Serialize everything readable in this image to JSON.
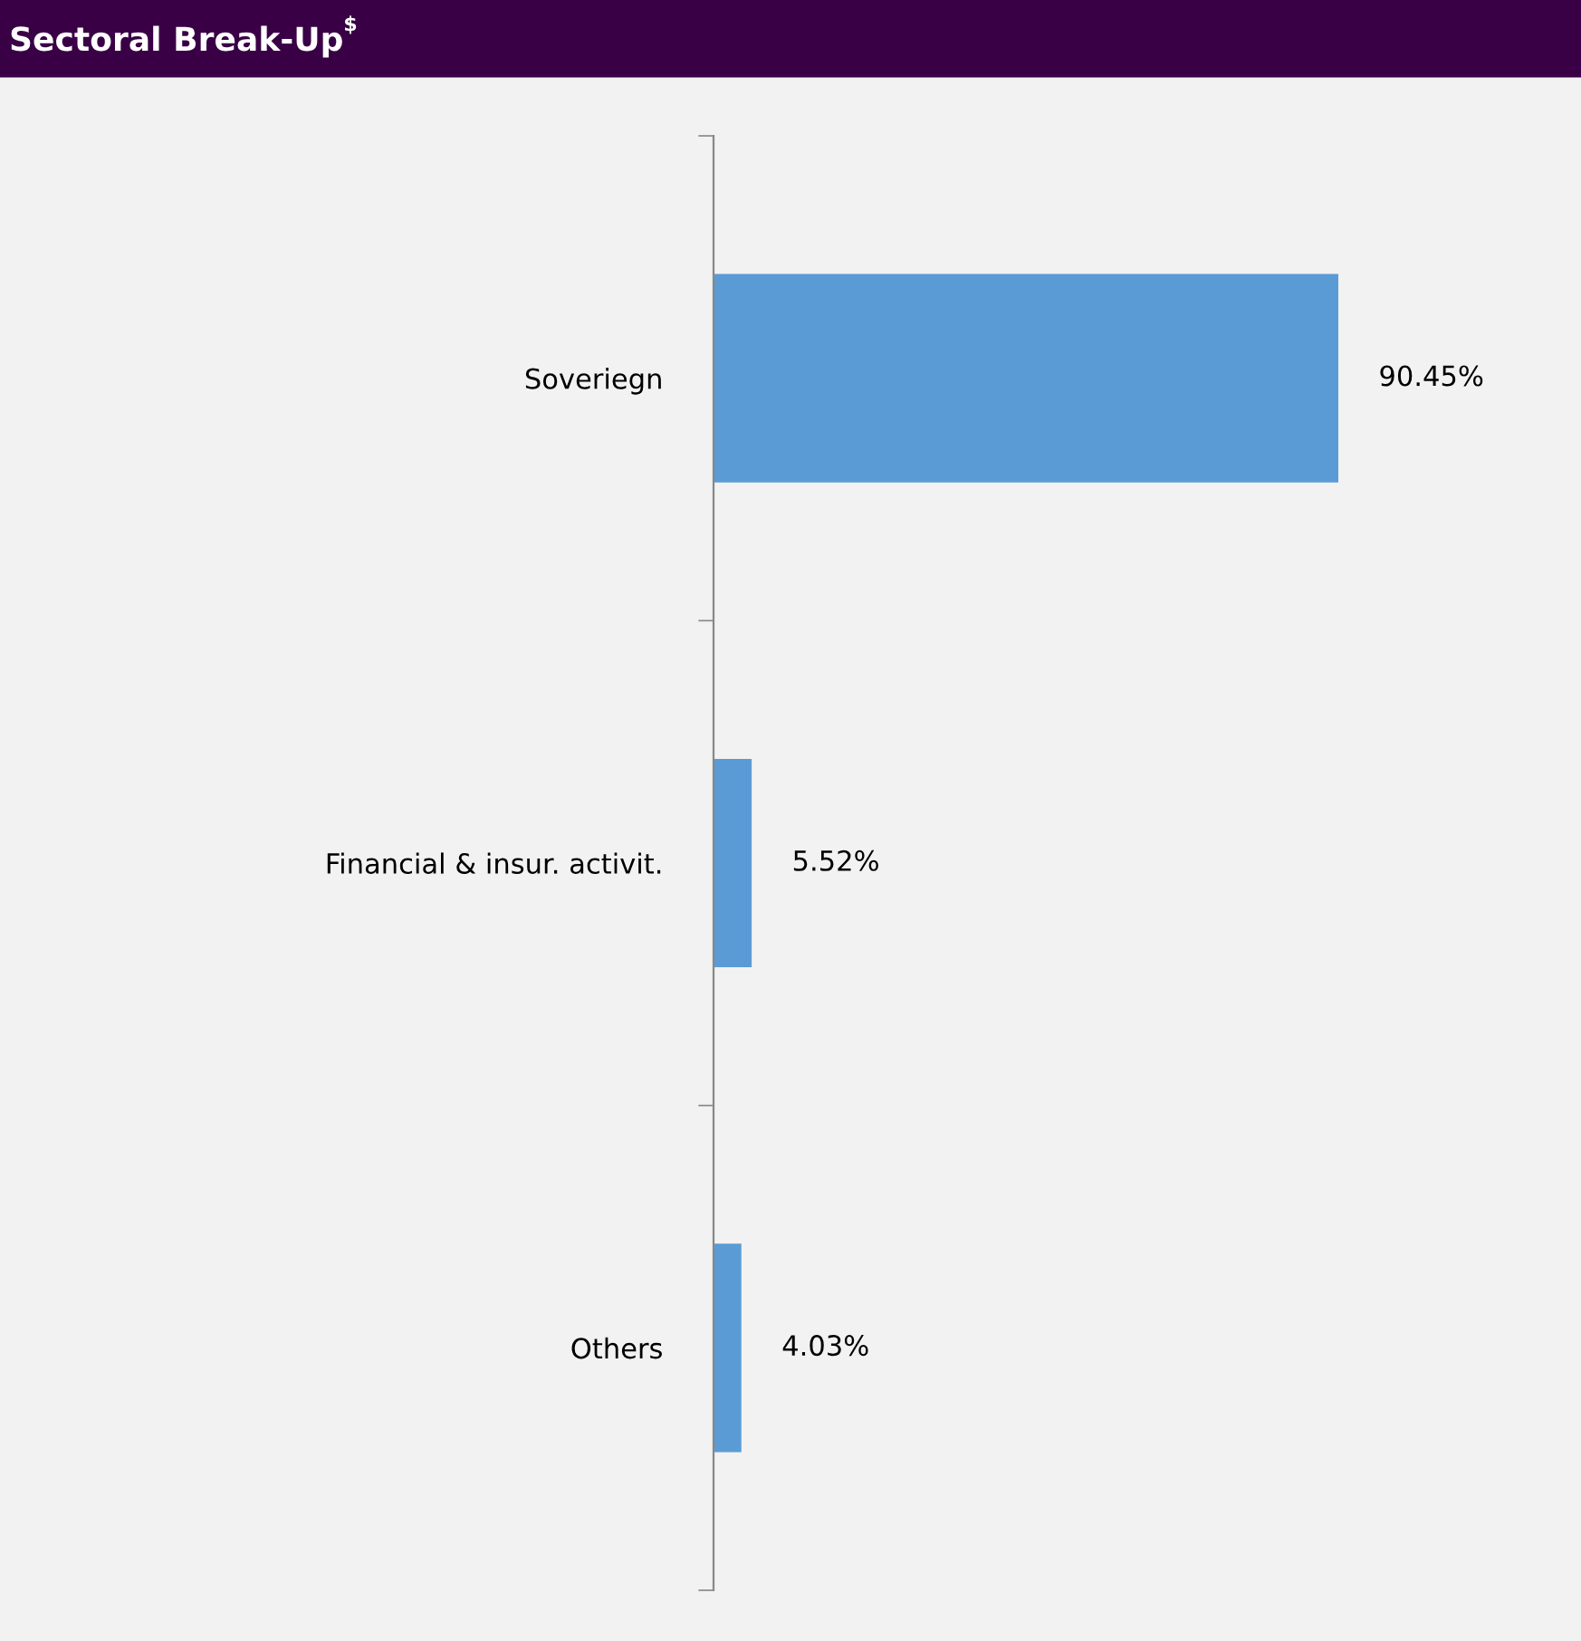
{
  "chart_data": {
    "type": "bar",
    "orientation": "horizontal",
    "title": "Sectoral Break-Up$^{$}$",
    "categories": [
      "Soveriegn",
      "Financial & insur. activit.",
      "Others"
    ],
    "values": [
      90.45,
      5.52,
      4.03
    ],
    "value_labels": [
      "90.45%",
      "5.52%",
      "4.03%"
    ],
    "color": "#5b9bd5",
    "grid": false,
    "legend": false
  }
}
